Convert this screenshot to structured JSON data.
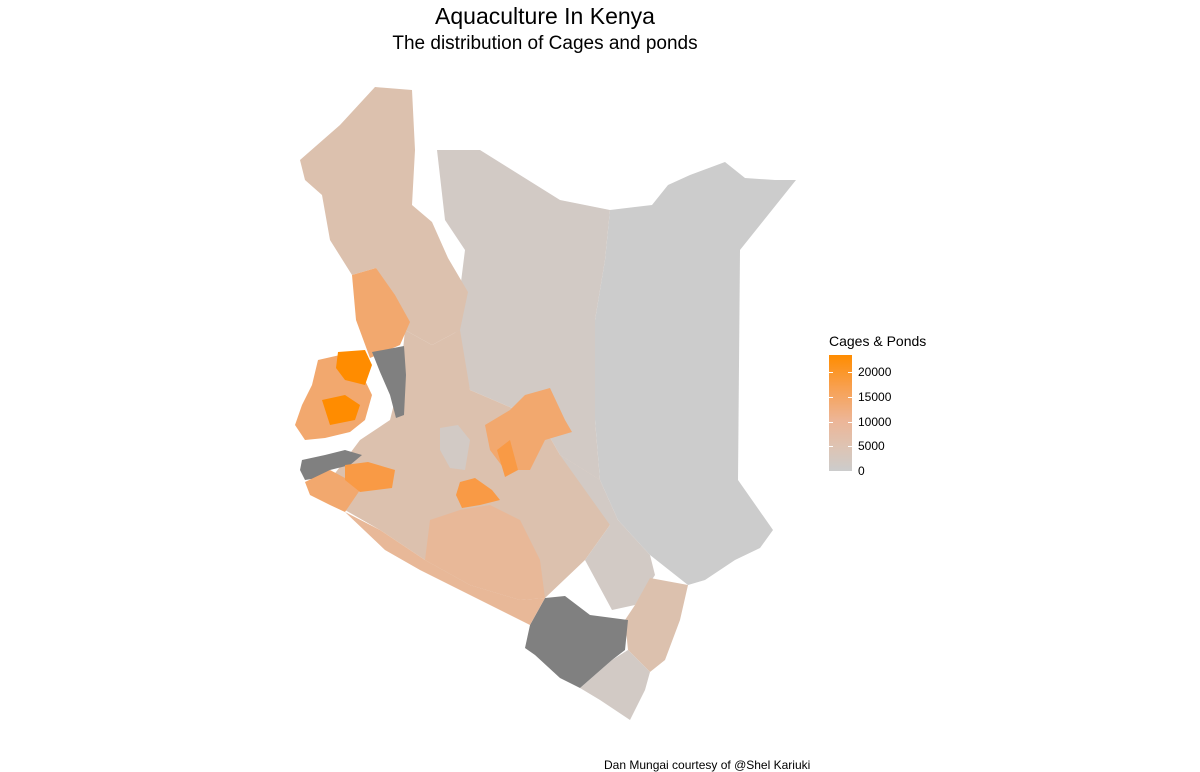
{
  "title": "Aquaculture In Kenya",
  "subtitle": "The distribution of Cages and ponds",
  "legend": {
    "title": "Cages & Ponds",
    "low_color": "#CCCCCC",
    "high_color": "#FF8C00",
    "na_color": "#808080",
    "ticks": [
      {
        "label": "20000",
        "value": 20000
      },
      {
        "label": "15000",
        "value": 15000
      },
      {
        "label": "10000",
        "value": 10000
      },
      {
        "label": "5000",
        "value": 5000
      },
      {
        "label": "0",
        "value": 0
      }
    ],
    "max_value": 23500
  },
  "caption": "Dan  Mungai courtesy of @Shel  Kariuki",
  "map": {
    "country": "Kenya",
    "fill_variable": "Cages & Ponds",
    "colors": {
      "none": "#CCCCCC",
      "very_low": "#D2CAC5",
      "low": "#DCC1AE",
      "mid": "#E8B898",
      "high": "#F2A86E",
      "very_high": "#F99A45",
      "max": "#FF8C00",
      "no_data": "#808080"
    }
  }
}
